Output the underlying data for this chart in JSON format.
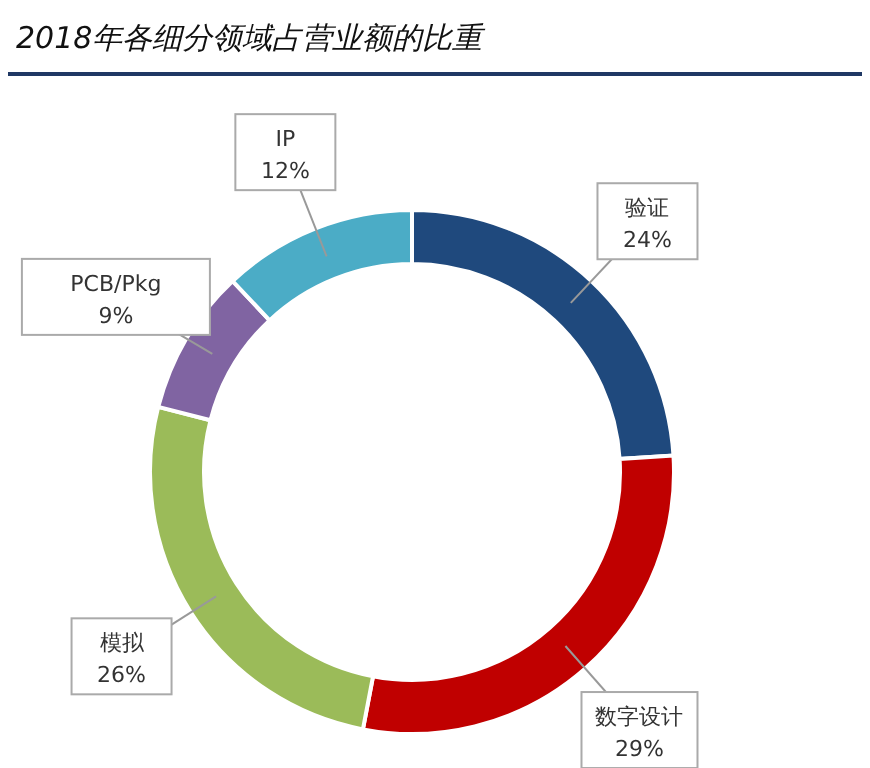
{
  "chart_data": {
    "type": "donut",
    "title": "2018年各细分领域占营业额的比重",
    "categories": [
      "验证",
      "数字设计",
      "模拟",
      "PCB/Pkg",
      "IP"
    ],
    "values": [
      24,
      29,
      26,
      9,
      12
    ],
    "value_labels": [
      "24%",
      "29%",
      "26%",
      "9%",
      "12%"
    ],
    "colors": [
      "#1f497d",
      "#c00000",
      "#9bbb59",
      "#8064a2",
      "#4bacc6"
    ]
  }
}
